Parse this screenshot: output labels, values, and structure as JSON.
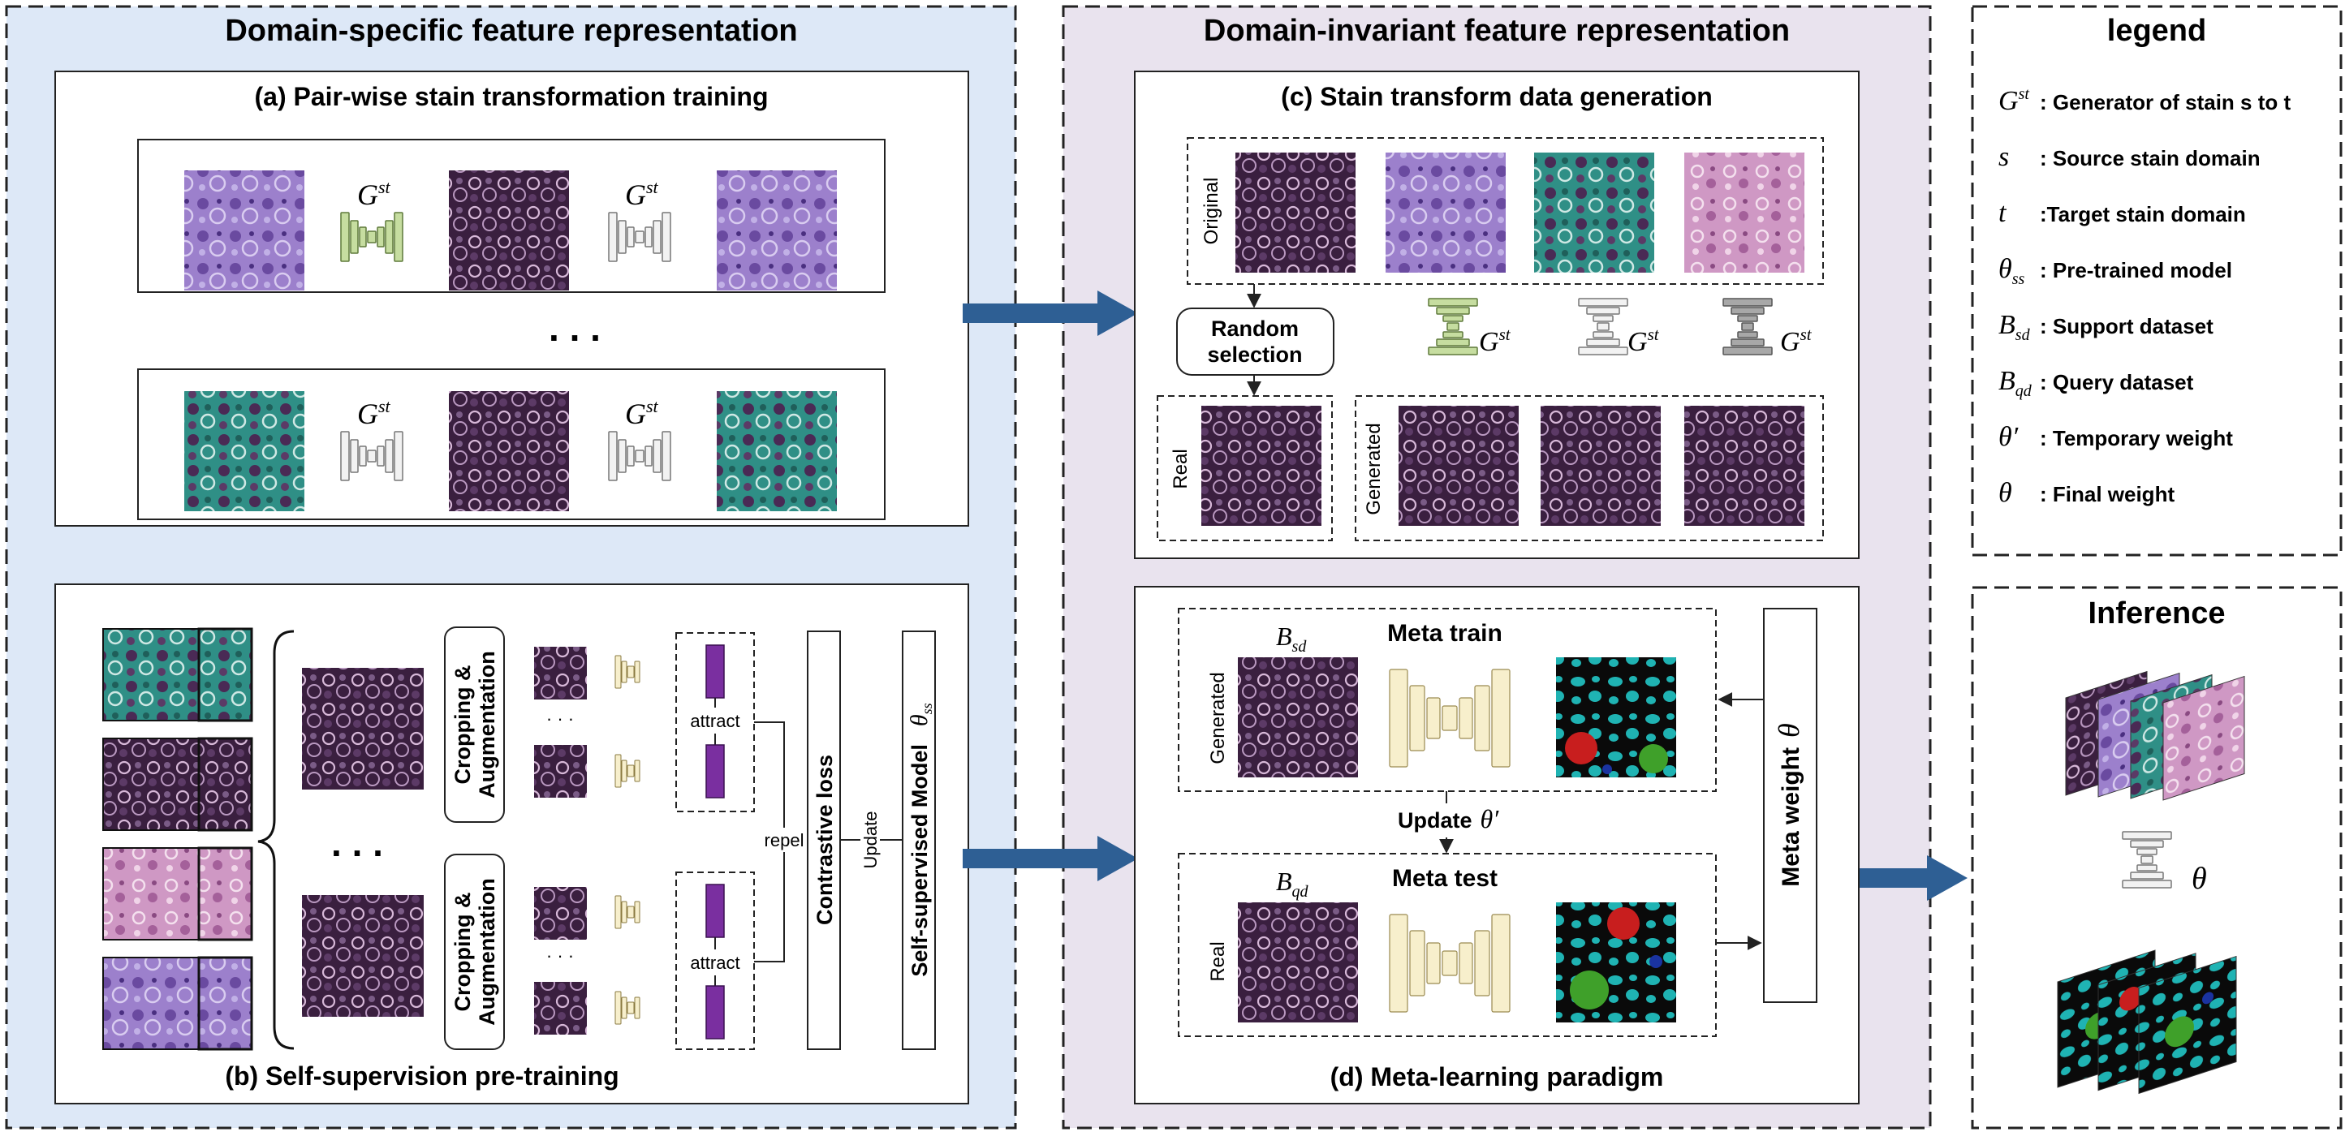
{
  "panels": {
    "domain_specific": {
      "title": "Domain-specific feature representation"
    },
    "domain_invariant": {
      "title": "Domain-invariant feature representation"
    },
    "legend": {
      "title": "legend"
    },
    "inference": {
      "title": "Inference"
    }
  },
  "sub_a": {
    "title": "(a) Pair-wise stain transformation training",
    "generator_label": "G",
    "generator_sup": "st",
    "ellipsis": ". . ."
  },
  "sub_b": {
    "title": "(b) Self-supervision pre-training",
    "crop_aug_line1": "Cropping &",
    "crop_aug_line2": "Augmentation",
    "attract": "attract",
    "repel": "repel",
    "contrastive_loss": "Contrastive loss",
    "update": "Update",
    "ss_model": "Self-supervised Model",
    "theta_symbol": "θ",
    "theta_sub": "ss",
    "ellipsis": ". . .",
    "small_dots": "· · ·"
  },
  "sub_c": {
    "title": "(c) Stain transform data generation",
    "original": "Original",
    "random_line1": "Random",
    "random_line2": "selection",
    "real": "Real",
    "generated": "Generated",
    "generator_label": "G",
    "generator_sup": "st"
  },
  "sub_d": {
    "title": "(d) Meta-learning paradigm",
    "meta_train": "Meta train",
    "meta_test": "Meta test",
    "generated": "Generated",
    "real": "Real",
    "bsd_base": "B",
    "bsd_sub": "sd",
    "bqd_base": "B",
    "bqd_sub": "qd",
    "update": "Update",
    "theta_prime": "θ′",
    "meta_weight": "Meta weight",
    "theta": "θ"
  },
  "legend_items": [
    {
      "base": "G",
      "sub": "",
      "sup": "st",
      "text": ": Generator of stain s to t"
    },
    {
      "base": "s",
      "sub": "",
      "sup": "",
      "text": ": Source stain domain"
    },
    {
      "base": "t",
      "sub": "",
      "sup": "",
      "text": ":Target stain domain"
    },
    {
      "base": "θ",
      "sub": "ss",
      "sup": "",
      "text": ": Pre-trained model"
    },
    {
      "base": "B",
      "sub": "sd",
      "sup": "",
      "text": ": Support dataset"
    },
    {
      "base": "B",
      "sub": "qd",
      "sup": "",
      "text": ": Query dataset"
    },
    {
      "base": "θ′",
      "sub": "",
      "sup": "",
      "text": ": Temporary weight"
    },
    {
      "base": "θ",
      "sub": "",
      "sup": "",
      "text": ": Final weight"
    }
  ],
  "inference": {
    "theta": "θ"
  },
  "colors": {
    "left_bg": "#dde8f7",
    "mid_bg": "#e9e3ee",
    "arrow": "#2e5f94",
    "gen_green": "#c6dda0",
    "gen_white": "#f2f2f2",
    "gen_gray": "#a8a8a8",
    "gen_yellow": "#f7efcc",
    "feature_purple": "#7a2fa0",
    "tissue_purple_dark": "#3a1f3f",
    "tissue_purple_light": "#9a78c8",
    "tissue_teal": "#2f8f86",
    "tissue_pink": "#c98dbb",
    "mask_cyan": "#1fb3b3",
    "mask_red": "#c81e1e",
    "mask_green": "#3fa02a",
    "mask_blue": "#1a33a0"
  }
}
